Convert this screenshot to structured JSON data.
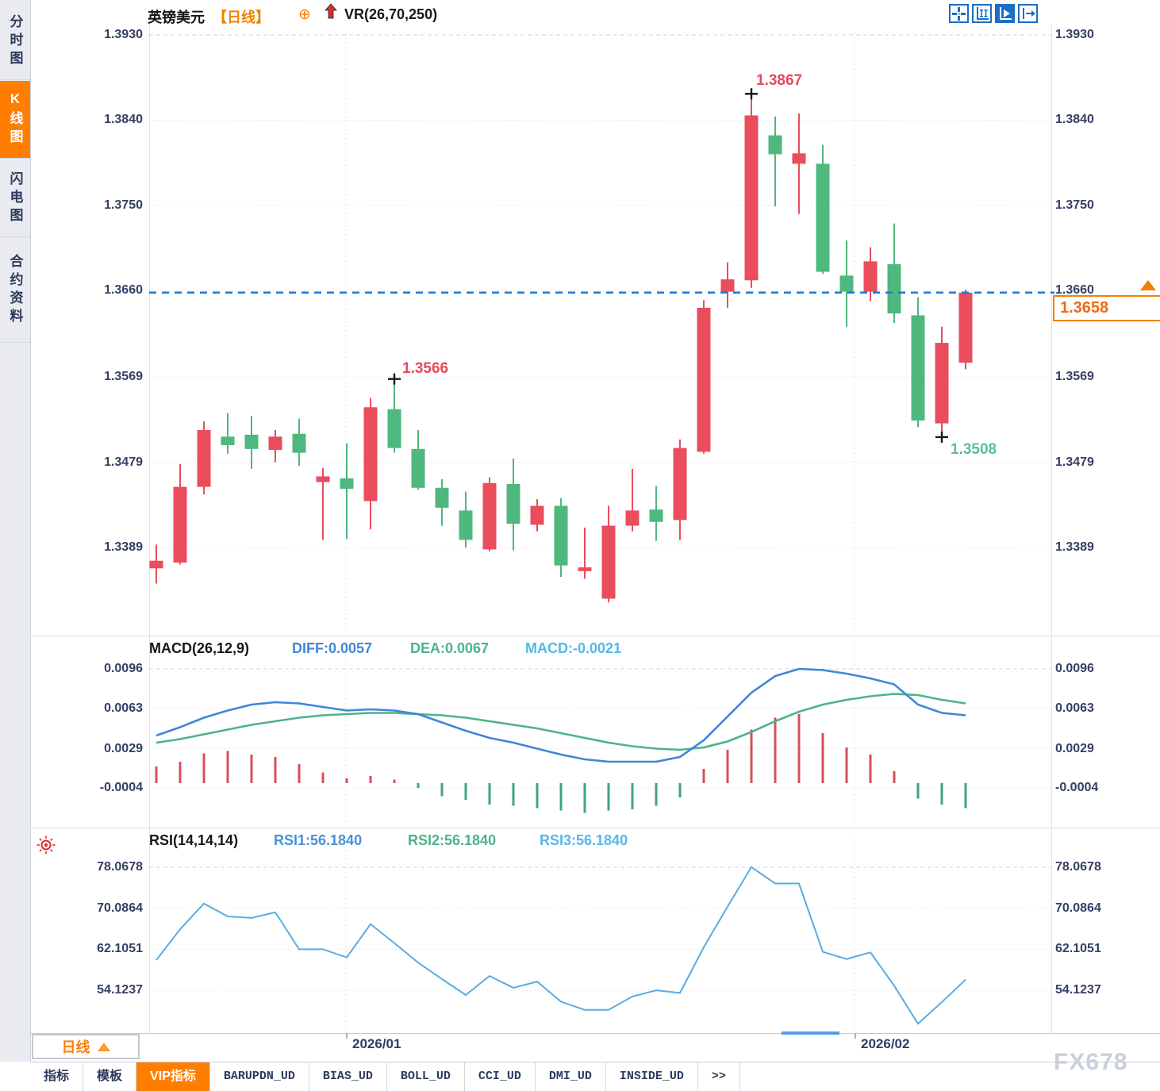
{
  "window": {
    "watermark": "FX678"
  },
  "colors": {
    "up": "#ea4d5c",
    "down": "#4eb87e",
    "accent_orange": "#ff7e00",
    "axis_text": "#353e63",
    "price_line_blue": "#1b7ad6",
    "diff_blue": "#3f87d8",
    "dea_green": "#4db389",
    "macd_cyan": "#54b8e8",
    "rsi_blue": "#58ace0",
    "hist_red": "#d4505c",
    "hist_green": "#3fa578",
    "icon_blue": "#1a6fc4",
    "low_label_teal": "#57bfa5",
    "anno_red": "#e8495a"
  },
  "sidebar": {
    "items": [
      {
        "label": "分时图",
        "active": false
      },
      {
        "label": "K线图",
        "active": true
      },
      {
        "label": "闪电图",
        "active": false
      },
      {
        "label": "合约资料",
        "active": false
      }
    ]
  },
  "header": {
    "symbol": "英镑美元",
    "period_bracket": "【日线】",
    "overlay_indicator": "VR(26,70,250)",
    "icons": [
      "circle-plus-icon",
      "red-up-arrow-icon"
    ]
  },
  "toolbar": {
    "icons": [
      {
        "name": "crosshair-icon",
        "active": false
      },
      {
        "name": "axis-range-icon",
        "active": false
      },
      {
        "name": "axis-play-icon",
        "active": true
      },
      {
        "name": "pan-right-icon",
        "active": false
      }
    ]
  },
  "price_tag": {
    "value": "1.3658"
  },
  "annotations": {
    "high": "1.3867",
    "swing_high": "1.3566",
    "low": "1.3508"
  },
  "macd_header": {
    "title": "MACD(26,12,9)",
    "diff": "DIFF:0.0057",
    "dea": "DEA:0.0067",
    "macd": "MACD:-0.0021"
  },
  "rsi_header": {
    "title": "RSI(14,14,14)",
    "rsi1": "RSI1:56.1840",
    "rsi2": "RSI2:56.1840",
    "rsi3": "RSI3:56.1840"
  },
  "x_axis": {
    "labels": [
      "2026/01",
      "2026/02"
    ]
  },
  "period_selector": {
    "label": "日线"
  },
  "bottom_tabs": [
    {
      "label": "指标",
      "active": false,
      "mono": false
    },
    {
      "label": "模板",
      "active": false,
      "mono": false
    },
    {
      "label": "VIP指标",
      "active": true,
      "mono": false
    },
    {
      "label": "BARUPDN_UD",
      "active": false,
      "mono": true
    },
    {
      "label": "BIAS_UD",
      "active": false,
      "mono": true
    },
    {
      "label": "BOLL_UD",
      "active": false,
      "mono": true
    },
    {
      "label": "CCI_UD",
      "active": false,
      "mono": true
    },
    {
      "label": "DMI_UD",
      "active": false,
      "mono": true
    },
    {
      "label": "INSIDE_UD",
      "active": false,
      "mono": true
    },
    {
      "label": ">>",
      "active": false,
      "mono": true
    }
  ],
  "chart_data": [
    {
      "type": "candlestick",
      "title": "英镑美元 日线",
      "y_ticks": [
        1.393,
        1.384,
        1.375,
        1.366,
        1.3569,
        1.3479,
        1.3389
      ],
      "x_labels": [
        "2026/01",
        "2026/02"
      ],
      "up_color": "#ea4d5c",
      "down_color": "#4eb87e",
      "last_price": 1.3658,
      "high_annotation": 1.3867,
      "high_idx": 25,
      "swing_annotation": 1.3566,
      "swing_idx": 10,
      "low_annotation": 1.3508,
      "low_idx": 33,
      "candles_format": [
        "open",
        "high",
        "low",
        "close"
      ],
      "candles": [
        [
          1.3367,
          1.3392,
          1.3351,
          1.3375
        ],
        [
          1.3373,
          1.3477,
          1.3371,
          1.3453
        ],
        [
          1.3453,
          1.3522,
          1.3445,
          1.3513
        ],
        [
          1.3506,
          1.3531,
          1.3488,
          1.3497
        ],
        [
          1.3508,
          1.3528,
          1.3472,
          1.3493
        ],
        [
          1.3492,
          1.3513,
          1.3479,
          1.3506
        ],
        [
          1.3509,
          1.3525,
          1.3475,
          1.3489
        ],
        [
          1.3458,
          1.3473,
          1.3397,
          1.3464
        ],
        [
          1.3462,
          1.3499,
          1.3398,
          1.3451
        ],
        [
          1.3438,
          1.3547,
          1.3408,
          1.3537
        ],
        [
          1.3535,
          1.3566,
          1.3489,
          1.3494
        ],
        [
          1.3493,
          1.3513,
          1.345,
          1.3452
        ],
        [
          1.3452,
          1.3461,
          1.3412,
          1.3431
        ],
        [
          1.3428,
          1.3448,
          1.3389,
          1.3397
        ],
        [
          1.3387,
          1.3463,
          1.3385,
          1.3457
        ],
        [
          1.3456,
          1.3483,
          1.3386,
          1.3414
        ],
        [
          1.3413,
          1.344,
          1.3406,
          1.3433
        ],
        [
          1.3433,
          1.3441,
          1.3358,
          1.337
        ],
        [
          1.3364,
          1.341,
          1.3356,
          1.3368
        ],
        [
          1.3335,
          1.3433,
          1.3331,
          1.3412
        ],
        [
          1.3412,
          1.3472,
          1.3406,
          1.3428
        ],
        [
          1.3429,
          1.3454,
          1.3396,
          1.3416
        ],
        [
          1.3418,
          1.3503,
          1.3397,
          1.3494
        ],
        [
          1.349,
          1.365,
          1.3488,
          1.3642
        ],
        [
          1.3659,
          1.369,
          1.3642,
          1.3672
        ],
        [
          1.3671,
          1.3867,
          1.3663,
          1.3845
        ],
        [
          1.3824,
          1.3844,
          1.3749,
          1.3804
        ],
        [
          1.3794,
          1.3847,
          1.3741,
          1.3805
        ],
        [
          1.3794,
          1.3814,
          1.3678,
          1.368
        ],
        [
          1.3676,
          1.3713,
          1.3622,
          1.3659
        ],
        [
          1.3659,
          1.3706,
          1.3649,
          1.3691
        ],
        [
          1.3688,
          1.3731,
          1.3626,
          1.3636
        ],
        [
          1.3634,
          1.3653,
          1.3516,
          1.3523
        ],
        [
          1.352,
          1.3622,
          1.3508,
          1.3605
        ],
        [
          1.3584,
          1.3661,
          1.3577,
          1.3658
        ]
      ]
    },
    {
      "type": "bar",
      "name": "MACD",
      "params": "(26,12,9)",
      "diff": 0.0057,
      "dea": 0.0067,
      "macd": -0.0021,
      "y_ticks": [
        0.0096,
        0.0063,
        0.0029,
        -0.0004
      ],
      "histogram": [
        0.0014,
        0.0018,
        0.0025,
        0.0027,
        0.0024,
        0.0022,
        0.0016,
        0.0009,
        0.0004,
        0.0006,
        0.0003,
        -0.0004,
        -0.0011,
        -0.0014,
        -0.0018,
        -0.0019,
        -0.0021,
        -0.0023,
        -0.0025,
        -0.0023,
        -0.0022,
        -0.0019,
        -0.0012,
        0.0012,
        0.0028,
        0.0045,
        0.0055,
        0.0058,
        0.0042,
        0.003,
        0.0024,
        0.001,
        -0.0013,
        -0.0018,
        -0.0021
      ],
      "diff_line": [
        0.004,
        0.0047,
        0.0055,
        0.0061,
        0.0066,
        0.0068,
        0.0067,
        0.0064,
        0.0061,
        0.0062,
        0.0061,
        0.0058,
        0.0051,
        0.0044,
        0.0038,
        0.0034,
        0.0029,
        0.0024,
        0.002,
        0.0018,
        0.0018,
        0.0018,
        0.0022,
        0.0036,
        0.0056,
        0.0076,
        0.009,
        0.0096,
        0.0095,
        0.0092,
        0.0088,
        0.0083,
        0.0066,
        0.0059,
        0.0057
      ],
      "dea_line": [
        0.0034,
        0.0037,
        0.0041,
        0.0045,
        0.0049,
        0.0052,
        0.0055,
        0.0057,
        0.0058,
        0.0059,
        0.0059,
        0.0058,
        0.0057,
        0.0055,
        0.0052,
        0.0049,
        0.0046,
        0.0042,
        0.0038,
        0.0034,
        0.0031,
        0.0029,
        0.0028,
        0.003,
        0.0035,
        0.0043,
        0.0052,
        0.006,
        0.0066,
        0.007,
        0.0073,
        0.0075,
        0.0074,
        0.007,
        0.0067
      ]
    },
    {
      "type": "line",
      "name": "RSI",
      "params": "(14,14,14)",
      "rsi1": 56.184,
      "rsi2": 56.184,
      "rsi3": 56.184,
      "y_ticks": [
        78.0678,
        70.0864,
        62.1051,
        54.1237
      ],
      "values": [
        60.0,
        66.0,
        71.0,
        68.5,
        68.2,
        69.3,
        62.1,
        62.1,
        60.5,
        67.0,
        63.3,
        59.5,
        56.3,
        53.2,
        56.9,
        54.6,
        55.8,
        51.9,
        50.3,
        50.3,
        52.9,
        54.1,
        53.6,
        62.5,
        70.4,
        78.1,
        74.9,
        74.9,
        61.6,
        60.2,
        61.5,
        55.0,
        47.6,
        51.8,
        56.2
      ]
    }
  ]
}
